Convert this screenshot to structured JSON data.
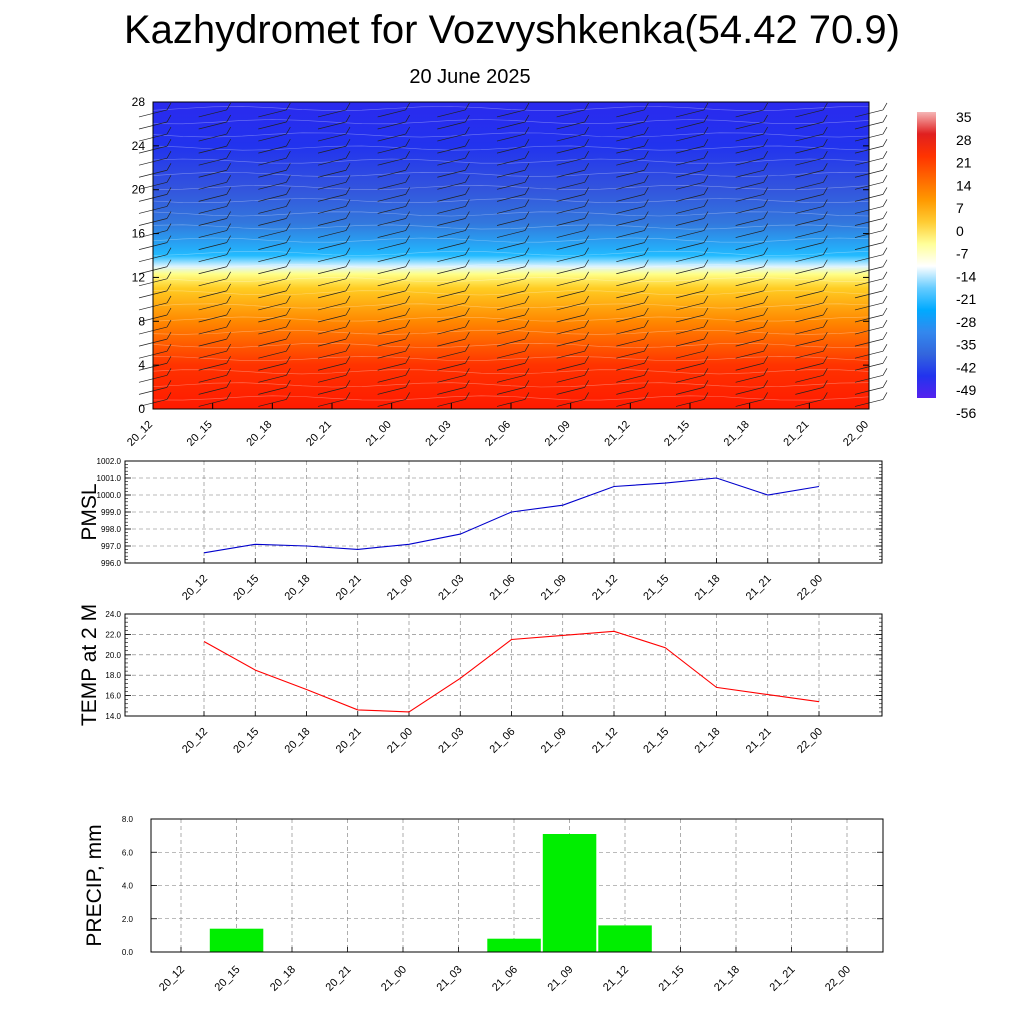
{
  "title": "Kazhydromet for Vozvyshkenka(54.42 70.9)",
  "subtitle": "20 June 2025",
  "time_labels": [
    "20_12",
    "20_15",
    "20_18",
    "20_21",
    "21_00",
    "21_03",
    "21_06",
    "21_09",
    "21_12",
    "21_15",
    "21_18",
    "21_21",
    "22_00"
  ],
  "chart_data": [
    {
      "type": "heatmap",
      "ylim": [
        0,
        28
      ],
      "yticks": [
        "0",
        "4",
        "8",
        "12",
        "16",
        "20",
        "24",
        "28"
      ],
      "x": [
        "20_12",
        "20_15",
        "20_18",
        "20_21",
        "21_00",
        "21_03",
        "21_06",
        "21_09",
        "21_12",
        "21_15",
        "21_18",
        "21_21",
        "22_00"
      ],
      "colorbar": {
        "labels": [
          "35",
          "28",
          "21",
          "14",
          "7",
          "0",
          "-7",
          "-14",
          "-21",
          "-28",
          "-35",
          "-42",
          "-49",
          "-56"
        ],
        "colors": [
          "#f5b5b5",
          "#e02020",
          "#ff3300",
          "#ff6600",
          "#ff9900",
          "#ffcc33",
          "#ffff99",
          "#ffffff",
          "#66ccff",
          "#00aaff",
          "#3388ee",
          "#3366dd",
          "#2233ee",
          "#5522ee"
        ]
      },
      "level_colors": [
        {
          "level": 0,
          "color": "#ff1a00"
        },
        {
          "level": 4,
          "color": "#ff3300"
        },
        {
          "level": 8,
          "color": "#ff8800"
        },
        {
          "level": 11,
          "color": "#ffcc22"
        },
        {
          "level": 12.3,
          "color": "#ffff88"
        },
        {
          "level": 13,
          "color": "#ddf4ff"
        },
        {
          "level": 14,
          "color": "#22bbff"
        },
        {
          "level": 17,
          "color": "#3377dd"
        },
        {
          "level": 20,
          "color": "#3355dd"
        },
        {
          "level": 24,
          "color": "#2233ee"
        },
        {
          "level": 28,
          "color": "#2a2aee"
        }
      ]
    },
    {
      "type": "line",
      "ylabel": "PMSL",
      "ylim": [
        996,
        1002
      ],
      "yticks": [
        "996.0",
        "997.0",
        "998.0",
        "999.0",
        "1000.0",
        "1001.0",
        "1002.0"
      ],
      "color": "#0000cc",
      "x": [
        "20_12",
        "20_15",
        "20_18",
        "20_21",
        "21_00",
        "21_03",
        "21_06",
        "21_09",
        "21_12",
        "21_15",
        "21_18",
        "21_21",
        "22_00"
      ],
      "values": [
        996.6,
        997.1,
        997.0,
        996.8,
        997.1,
        997.7,
        999.0,
        999.4,
        1000.5,
        1000.7,
        1001.0,
        1000.0,
        1000.5
      ],
      "grid": true
    },
    {
      "type": "line",
      "ylabel": "TEMP at 2 M",
      "ylim": [
        14,
        24
      ],
      "yticks": [
        "14.0",
        "16.0",
        "18.0",
        "20.0",
        "22.0",
        "24.0"
      ],
      "color": "#ff0000",
      "x": [
        "20_12",
        "20_15",
        "20_18",
        "20_21",
        "21_00",
        "21_03",
        "21_06",
        "21_09",
        "21_12",
        "21_15",
        "21_18",
        "21_21",
        "22_00"
      ],
      "values": [
        21.3,
        18.5,
        16.6,
        14.6,
        14.4,
        17.7,
        21.5,
        21.9,
        22.3,
        20.7,
        16.8,
        16.1,
        15.4
      ],
      "grid": true
    },
    {
      "type": "bar",
      "ylabel": "PRECIP, mm",
      "ylim": [
        0,
        8
      ],
      "yticks": [
        "0.0",
        "2.0",
        "4.0",
        "6.0",
        "8.0"
      ],
      "color": "#00ee00",
      "categories": [
        "20_12",
        "20_15",
        "20_18",
        "20_21",
        "21_00",
        "21_03",
        "21_06",
        "21_09",
        "21_12",
        "21_15",
        "21_18",
        "21_21",
        "22_00"
      ],
      "values": [
        0,
        1.4,
        0,
        0,
        0,
        0,
        0.8,
        7.1,
        1.6,
        0,
        0,
        0,
        0
      ],
      "grid": true
    }
  ]
}
